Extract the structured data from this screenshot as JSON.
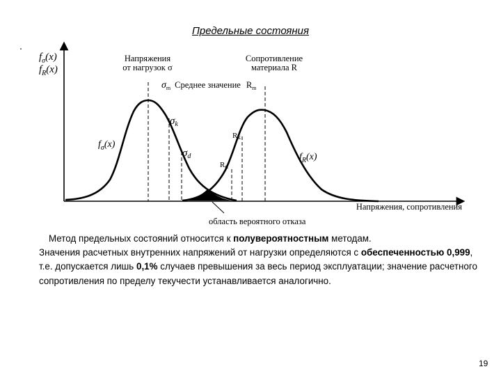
{
  "slide": {
    "title": "Предельные состояния",
    "marker": ".",
    "page_number": "19"
  },
  "diagram": {
    "y_axis": {
      "line1": "f",
      "line1_sub": "σ",
      "line1_end": "(x)",
      "line2": "f",
      "line2_sub": "R",
      "line2_end": "(x)"
    },
    "x_axis_label": "Напряжения, сопротивления",
    "load_header": [
      "Напряжения",
      "от нагрузок σ"
    ],
    "resist_header": [
      "Сопротивление",
      "материала R"
    ],
    "mean_label": {
      "sigma": "σ",
      "sigma_sub": "m",
      "text": "Среднее значение",
      "r": "R",
      "r_sub": "m"
    },
    "sigma_k": {
      "sym": "σ",
      "sub": "k"
    },
    "sigma_d": {
      "sym": "σ",
      "sub": "d"
    },
    "r_k": {
      "sym": "R",
      "sub": "k"
    },
    "r_d": {
      "sym": "R",
      "sub": "d"
    },
    "f_sigma": {
      "sym": "f",
      "sub": "σ",
      "end": "(x)"
    },
    "f_r": {
      "sym": "f",
      "sub": "R",
      "end": "(x)"
    },
    "failure_area_label": "область вероятного отказа"
  },
  "text": {
    "p1_a": "Метод предельных состояний относится к ",
    "p1_b": "полувероятностным",
    "p1_c": " методам.",
    "p2_a": "Значения расчетных внутренних напряжений от нагрузки определяются с ",
    "p2_b": "обеспеченностью 0,999",
    "p2_c": ", т.е. допускается лишь ",
    "p2_d": "0,1%",
    "p2_e": " случаев превышения за весь период эксплуатации; значение расчетного сопротивления по пределу текучести устанавливается аналогично."
  }
}
